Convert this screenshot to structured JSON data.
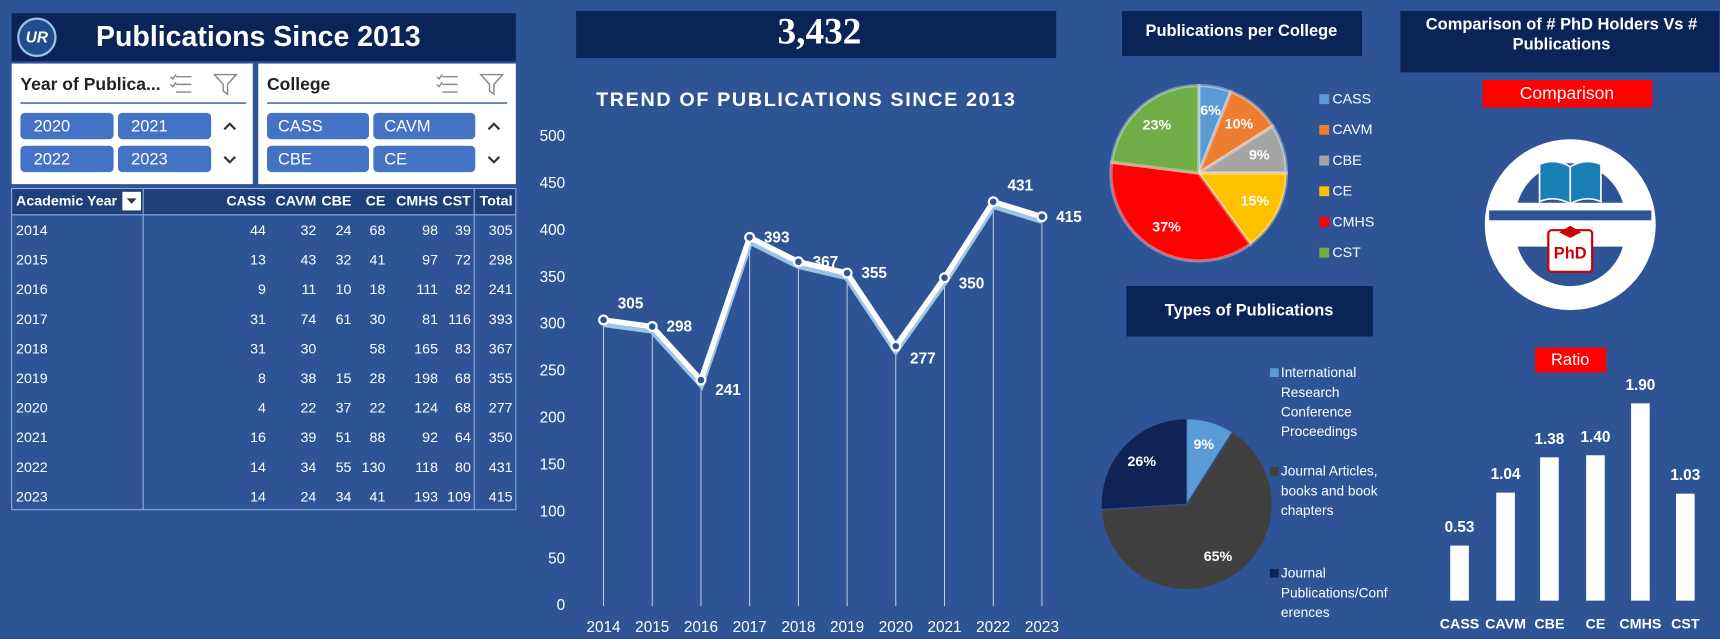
{
  "header": {
    "logo": "UR",
    "title": "Publications Since 2013"
  },
  "kpi": "3,432",
  "slicers": [
    {
      "title": "Year of Publica...",
      "items": [
        "2020",
        "2021",
        "2022",
        "2023"
      ]
    },
    {
      "title": "College",
      "items": [
        "CASS",
        "CAVM",
        "CBE",
        "CE"
      ]
    }
  ],
  "table": {
    "headers": [
      "Academic Year",
      "CASS",
      "CAVM",
      "CBE",
      "CE",
      "CMHS",
      "CST",
      "Total"
    ],
    "rows": [
      [
        2014,
        44,
        32,
        24,
        68,
        98,
        39,
        305
      ],
      [
        2015,
        13,
        43,
        32,
        41,
        97,
        72,
        298
      ],
      [
        2016,
        9,
        11,
        10,
        18,
        111,
        82,
        241
      ],
      [
        2017,
        31,
        74,
        61,
        30,
        81,
        116,
        393
      ],
      [
        2018,
        31,
        30,
        null,
        58,
        165,
        83,
        367
      ],
      [
        2019,
        8,
        38,
        15,
        28,
        198,
        68,
        355
      ],
      [
        2020,
        4,
        22,
        37,
        22,
        124,
        68,
        277
      ],
      [
        2021,
        16,
        39,
        51,
        88,
        92,
        64,
        350
      ],
      [
        2022,
        14,
        34,
        55,
        130,
        118,
        80,
        431
      ],
      [
        2023,
        14,
        24,
        34,
        41,
        193,
        109,
        415
      ]
    ]
  },
  "chart_data": [
    {
      "type": "line",
      "title": "TREND OF PUBLICATIONS SINCE 2013",
      "categories": [
        "2014",
        "2015",
        "2016",
        "2017",
        "2018",
        "2019",
        "2020",
        "2021",
        "2022",
        "2023"
      ],
      "values": [
        305,
        298,
        241,
        393,
        367,
        355,
        277,
        350,
        431,
        415
      ],
      "color": "#ffffff",
      "ylim": [
        0,
        500
      ],
      "yticks": [
        0,
        50,
        100,
        150,
        200,
        250,
        300,
        350,
        400,
        450,
        500
      ]
    },
    {
      "type": "pie",
      "title": "Publications per College",
      "categories": [
        "CASS",
        "CAVM",
        "CBE",
        "CE",
        "CMHS",
        "CST"
      ],
      "values": [
        6,
        10,
        9,
        15,
        37,
        23
      ],
      "value_labels": [
        "6%",
        "10%",
        "9%",
        "15%",
        "37%",
        "23%"
      ],
      "colors": [
        "#5b9bd5",
        "#ed7d31",
        "#a5a5a5",
        "#ffc000",
        "#ff0000",
        "#70ad47"
      ]
    },
    {
      "type": "pie",
      "title": "Types of Publications",
      "categories": [
        "International Research Conference Proceedings",
        "Journal Articles, books and book chapters",
        "Journal Publications/Conferences"
      ],
      "values": [
        9,
        65,
        26
      ],
      "value_labels": [
        "9%",
        "65%",
        "26%"
      ],
      "colors": [
        "#5b9bd5",
        "#404040",
        "#0f2356"
      ]
    },
    {
      "type": "bar",
      "title": "Comparison of # PhD Holders Vs # Publications",
      "subtitle": "Comparison",
      "icon_label": "PhD",
      "axis_title": "Ratio",
      "categories": [
        "CASS",
        "CAVM",
        "CBE",
        "CE",
        "CMHS",
        "CST"
      ],
      "values": [
        0.53,
        1.04,
        1.38,
        1.4,
        1.9,
        1.03
      ],
      "value_labels": [
        "0.53",
        "1.04",
        "1.38",
        "1.40",
        "1.90",
        "1.03"
      ],
      "color": "#ffffff"
    }
  ]
}
